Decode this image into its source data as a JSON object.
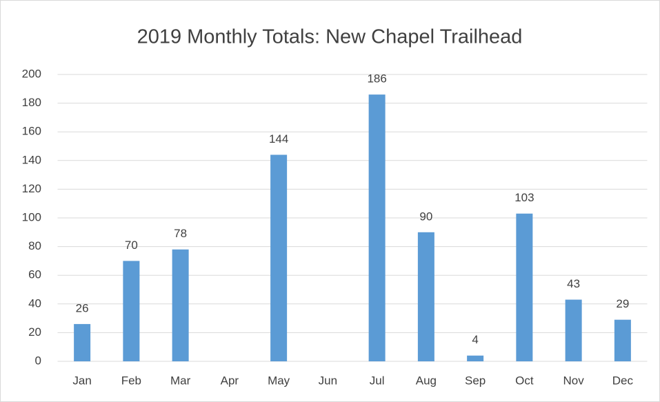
{
  "chart_data": {
    "type": "bar",
    "title": "2019 Monthly Totals: New Chapel Trailhead",
    "categories": [
      "Jan",
      "Feb",
      "Mar",
      "Apr",
      "May",
      "Jun",
      "Jul",
      "Aug",
      "Sep",
      "Oct",
      "Nov",
      "Dec"
    ],
    "values": [
      26,
      70,
      78,
      null,
      144,
      null,
      186,
      90,
      4,
      103,
      43,
      29
    ],
    "color": "#5b9bd5",
    "ylim": [
      0,
      200
    ],
    "yticks": [
      0,
      20,
      40,
      60,
      80,
      100,
      120,
      140,
      160,
      180,
      200
    ],
    "grid": true
  }
}
